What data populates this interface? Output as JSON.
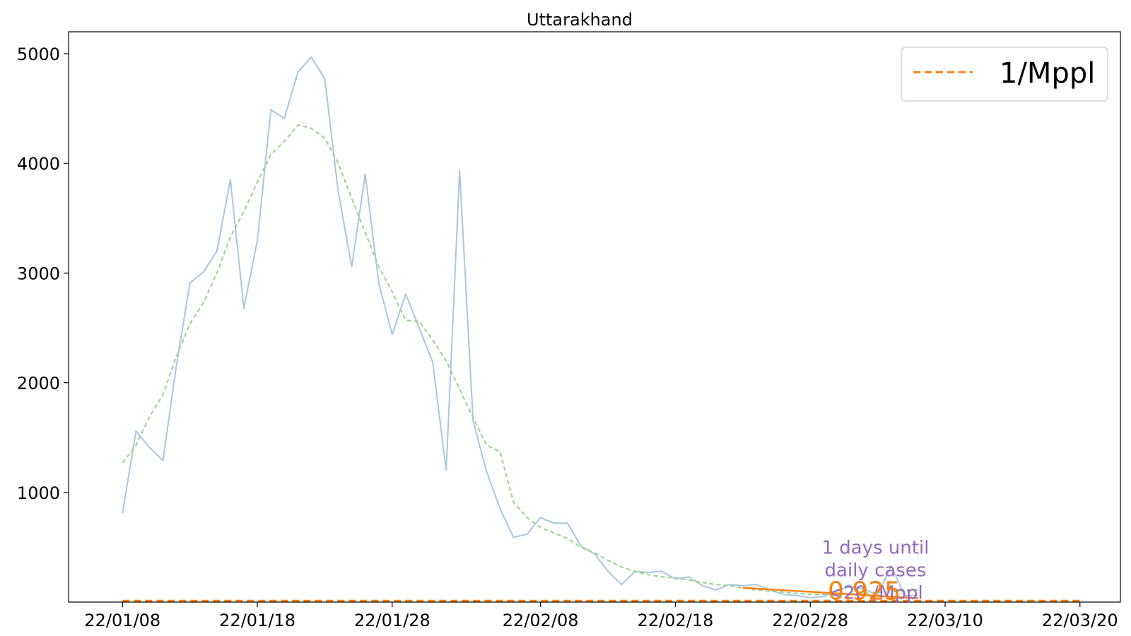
{
  "chart_data": {
    "type": "line",
    "title": "Uttarakhand",
    "xlabel": "",
    "ylabel": "",
    "x_ticks": [
      "22/01/08",
      "22/01/18",
      "22/01/28",
      "22/02/08",
      "22/02/18",
      "22/02/28",
      "22/03/10",
      "22/03/20"
    ],
    "y_ticks": [
      1000,
      2000,
      3000,
      4000,
      5000
    ],
    "xlim": [
      "2022-01-04",
      "2022-03-23"
    ],
    "ylim": [
      0,
      5200
    ],
    "grid": false,
    "legend_position": "top-right",
    "colors": {
      "daily": "#a6c8df",
      "smoothed": "#98d38b",
      "threshold": "#ff7f0e",
      "trend": "#ff7f0e",
      "annotation": "#9467bd"
    },
    "series": [
      {
        "key": "daily",
        "style": "solid",
        "x": [
          "2022-01-08",
          "2022-01-09",
          "2022-01-10",
          "2022-01-11",
          "2022-01-12",
          "2022-01-13",
          "2022-01-14",
          "2022-01-15",
          "2022-01-16",
          "2022-01-17",
          "2022-01-18",
          "2022-01-19",
          "2022-01-20",
          "2022-01-21",
          "2022-01-22",
          "2022-01-23",
          "2022-01-24",
          "2022-01-25",
          "2022-01-26",
          "2022-01-27",
          "2022-01-28",
          "2022-01-29",
          "2022-01-30",
          "2022-01-31",
          "2022-02-01",
          "2022-02-02",
          "2022-02-03",
          "2022-02-04",
          "2022-02-05",
          "2022-02-06",
          "2022-02-07",
          "2022-02-08",
          "2022-02-09",
          "2022-02-10",
          "2022-02-11",
          "2022-02-12",
          "2022-02-13",
          "2022-02-14",
          "2022-02-15",
          "2022-02-16",
          "2022-02-17",
          "2022-02-18",
          "2022-02-19",
          "2022-02-20",
          "2022-02-21",
          "2022-02-22",
          "2022-02-23",
          "2022-02-24",
          "2022-02-25",
          "2022-02-26",
          "2022-02-27",
          "2022-02-28",
          "2022-03-01",
          "2022-03-02",
          "2022-03-03",
          "2022-03-04",
          "2022-03-05",
          "2022-03-06",
          "2022-03-07",
          "2022-03-08"
        ],
        "values": [
          810,
          1560,
          1410,
          1290,
          2160,
          2910,
          3010,
          3200,
          3850,
          2680,
          3300,
          4490,
          4410,
          4830,
          4970,
          4770,
          3740,
          3060,
          3900,
          2910,
          2440,
          2810,
          2500,
          2190,
          1200,
          3930,
          1650,
          1190,
          850,
          590,
          620,
          770,
          720,
          720,
          510,
          440,
          280,
          160,
          280,
          270,
          280,
          210,
          230,
          150,
          110,
          160,
          150,
          160,
          110,
          70,
          60,
          40,
          50,
          110,
          140,
          120,
          60,
          330,
          60,
          60
        ]
      },
      {
        "key": "smoothed",
        "style": "dashed",
        "x": [
          "2022-01-08",
          "2022-01-09",
          "2022-01-10",
          "2022-01-11",
          "2022-01-12",
          "2022-01-13",
          "2022-01-14",
          "2022-01-15",
          "2022-01-16",
          "2022-01-17",
          "2022-01-18",
          "2022-01-19",
          "2022-01-20",
          "2022-01-21",
          "2022-01-22",
          "2022-01-23",
          "2022-01-24",
          "2022-01-25",
          "2022-01-26",
          "2022-01-27",
          "2022-01-28",
          "2022-01-29",
          "2022-01-30",
          "2022-01-31",
          "2022-02-01",
          "2022-02-02",
          "2022-02-03",
          "2022-02-04",
          "2022-02-05",
          "2022-02-06",
          "2022-02-07",
          "2022-02-08",
          "2022-02-09",
          "2022-02-10",
          "2022-02-11",
          "2022-02-12",
          "2022-02-13",
          "2022-02-14",
          "2022-02-15",
          "2022-02-16",
          "2022-02-17",
          "2022-02-18",
          "2022-02-19",
          "2022-02-20",
          "2022-02-21",
          "2022-02-22",
          "2022-02-23",
          "2022-02-24",
          "2022-02-25",
          "2022-02-26",
          "2022-02-27",
          "2022-02-28",
          "2022-03-01",
          "2022-03-02",
          "2022-03-03",
          "2022-03-04",
          "2022-03-05",
          "2022-03-06",
          "2022-03-07",
          "2022-03-08"
        ],
        "values": [
          1270,
          1430,
          1690,
          1890,
          2240,
          2540,
          2730,
          3000,
          3330,
          3560,
          3830,
          4080,
          4200,
          4350,
          4320,
          4230,
          4000,
          3680,
          3370,
          3060,
          2830,
          2570,
          2560,
          2390,
          2200,
          1940,
          1680,
          1430,
          1370,
          910,
          770,
          680,
          630,
          580,
          500,
          450,
          380,
          320,
          280,
          250,
          230,
          220,
          200,
          180,
          160,
          150,
          130,
          110,
          100,
          90,
          80,
          70,
          70,
          70,
          75,
          80,
          90,
          95,
          105,
          110
        ]
      },
      {
        "key": "threshold",
        "name": "1/Mppl",
        "style": "dashed",
        "x": [
          "2022-01-08",
          "2022-03-20"
        ],
        "values": [
          11,
          11
        ]
      },
      {
        "key": "trend",
        "style": "solid",
        "x": [
          "2022-02-23",
          "2022-03-08"
        ],
        "values": [
          130,
          35
        ]
      }
    ],
    "annotations": [
      {
        "key": "countdown",
        "lines": [
          "1 days until",
          "daily cases",
          "<20 /Mppl"
        ],
        "x": "2022-03-03",
        "y": 440,
        "color": "#9467bd"
      },
      {
        "key": "ratio",
        "text": "0.925",
        "x": "2022-03-04",
        "y": 105,
        "color": "#ff7f0e"
      }
    ],
    "legend": {
      "entries": [
        "1/Mppl"
      ]
    }
  }
}
